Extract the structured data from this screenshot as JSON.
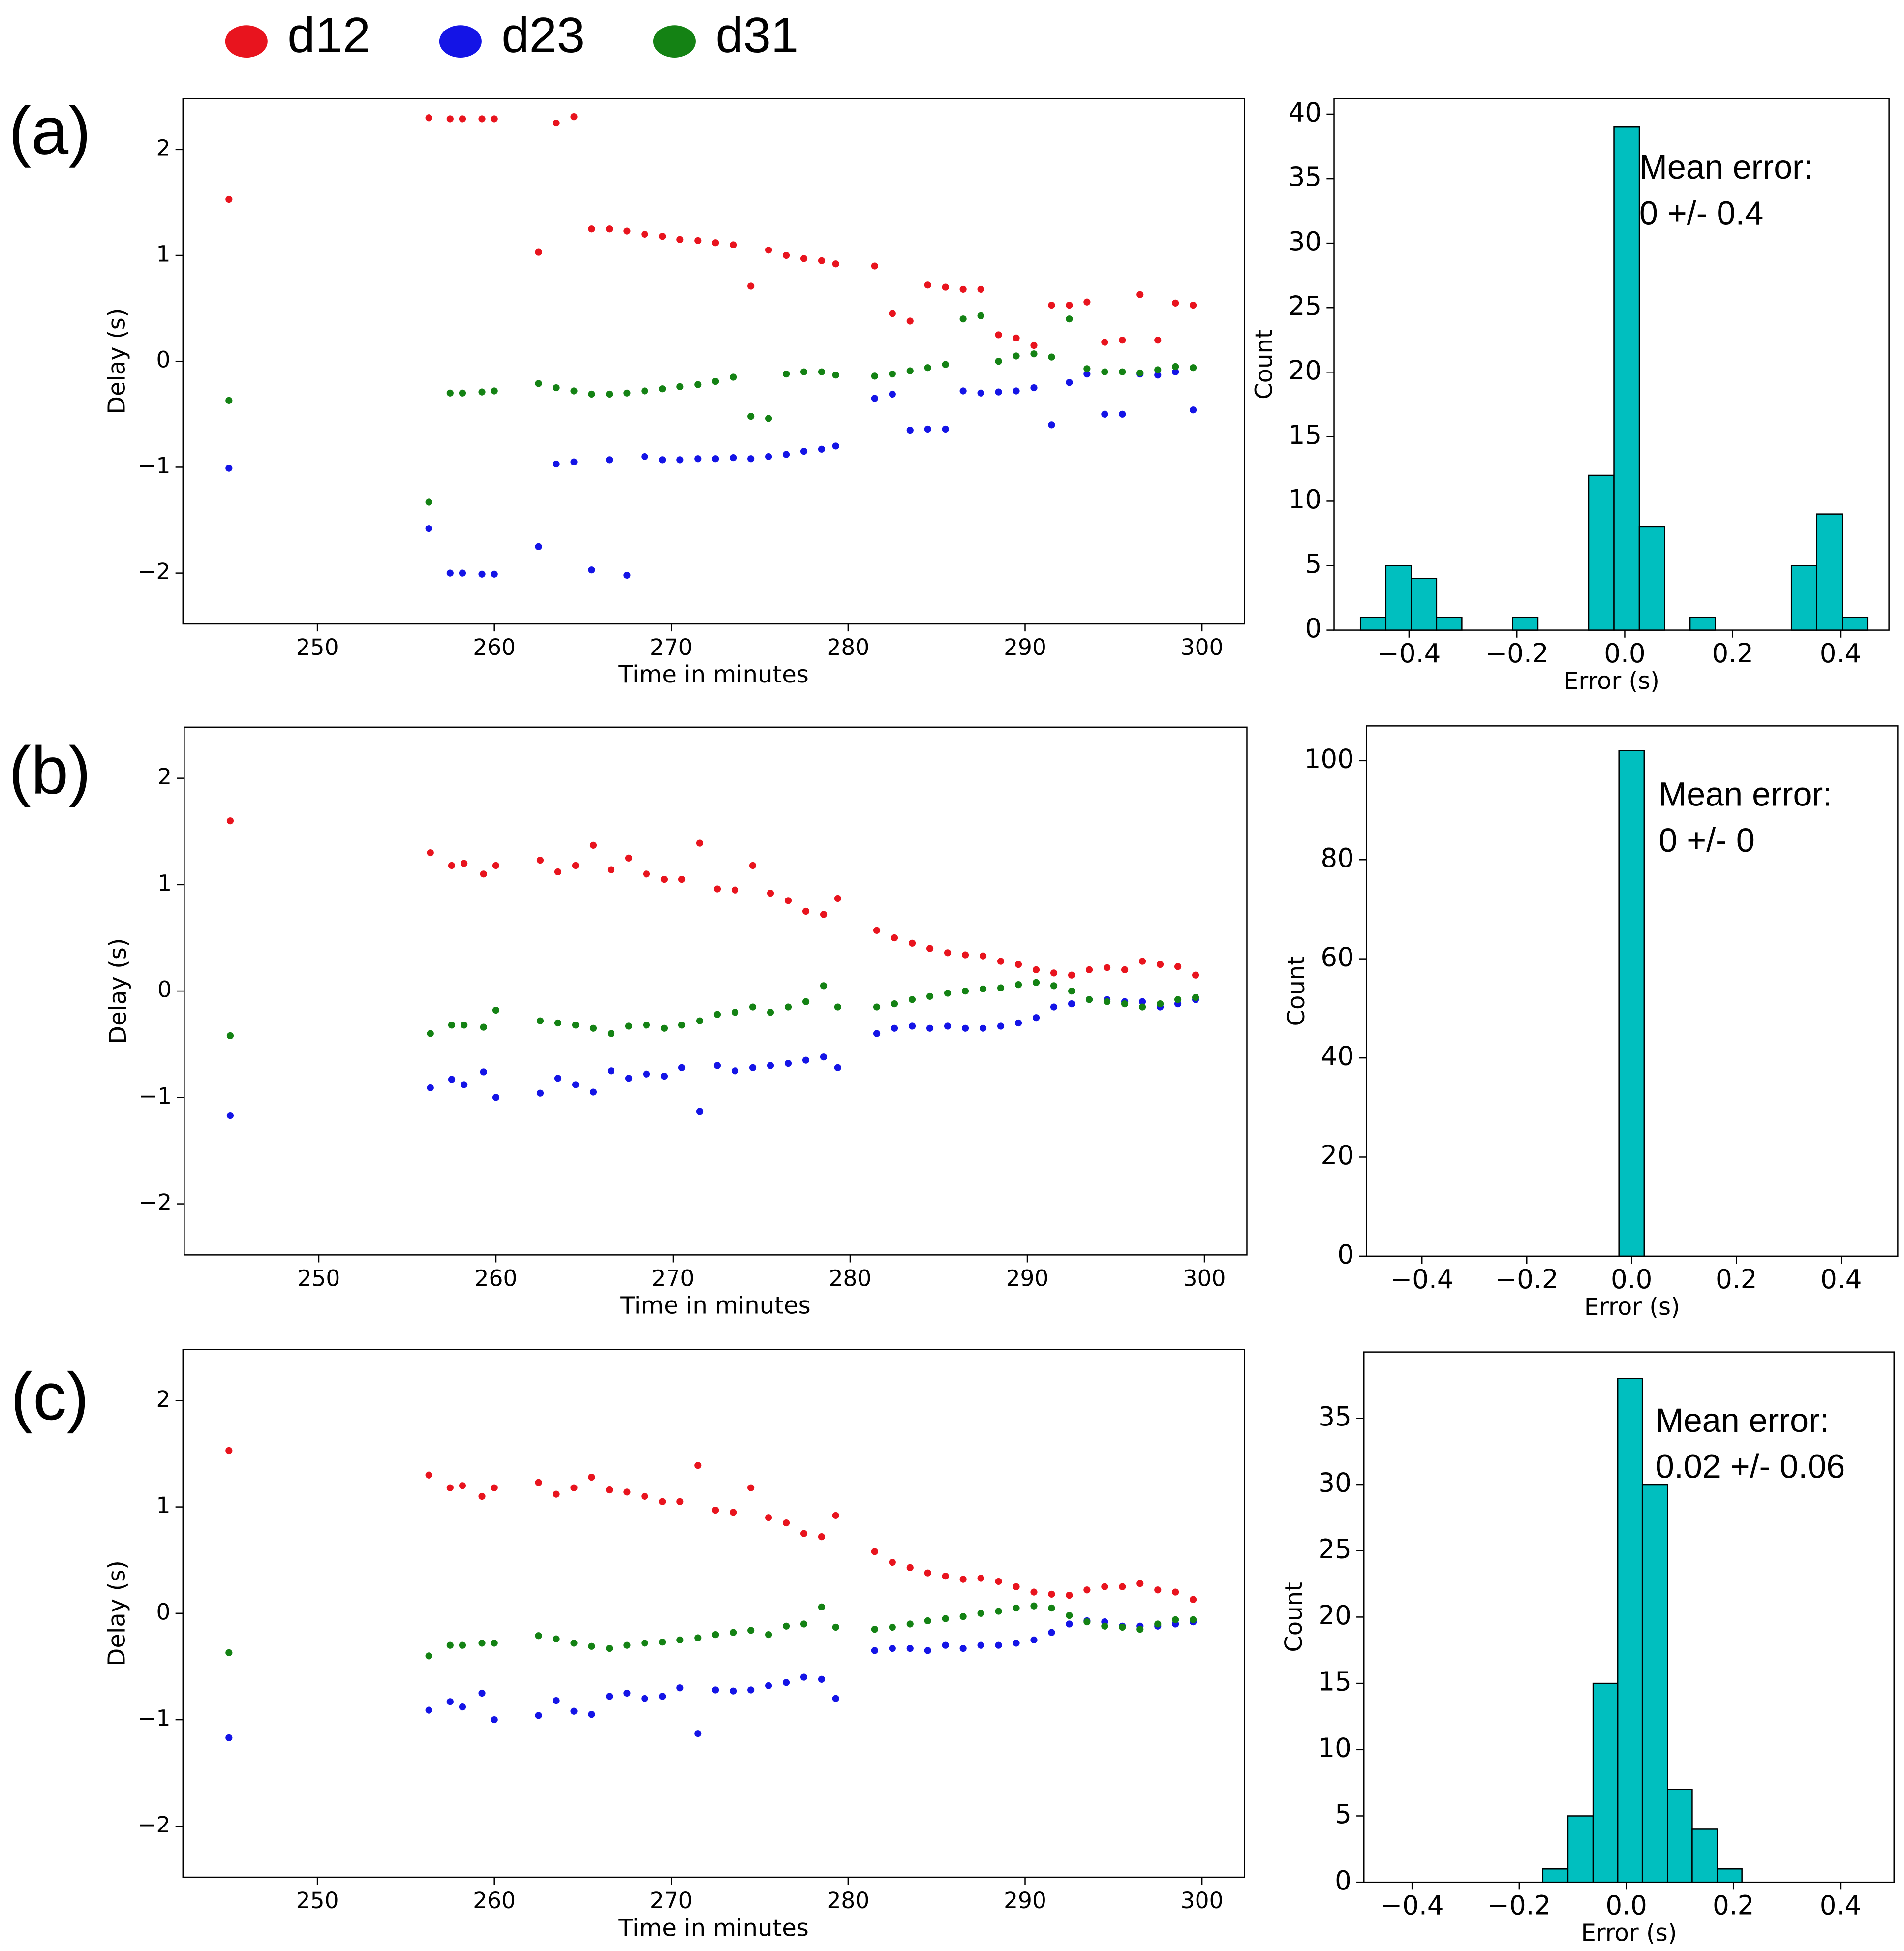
{
  "chart_data": [
    {
      "type": "scatter",
      "panel_label": "(a)",
      "x_label": "Time in minutes",
      "y_label": "Delay (s)",
      "xlim": [
        242.4,
        302.4
      ],
      "ylim": [
        -2.48,
        2.48
      ],
      "xticks": [
        250,
        260,
        270,
        280,
        290,
        300
      ],
      "yticks": [
        {
          "value": -2,
          "label": "−2"
        },
        {
          "value": -1,
          "label": "−1"
        },
        0,
        1,
        2
      ],
      "x": [
        245,
        256.3,
        257.5,
        258.2,
        259.3,
        260,
        262.5,
        263.5,
        264.5,
        265.5,
        266.5,
        267.5,
        268.5,
        269.5,
        270.5,
        271.5,
        272.5,
        273.5,
        274.5,
        275.5,
        276.5,
        277.5,
        278.5,
        279.3,
        281.5,
        282.5,
        283.5,
        284.5,
        285.5,
        286.5,
        287.5,
        288.5,
        289.5,
        290.5,
        291.5,
        292.5,
        293.5,
        294.5,
        295.5,
        296.5,
        297.5,
        298.5,
        299.5
      ],
      "series": [
        {
          "name": "d12",
          "color": "#e8141e",
          "values": [
            1.53,
            2.3,
            2.29,
            2.29,
            2.29,
            2.29,
            1.03,
            2.25,
            2.31,
            1.25,
            1.25,
            1.23,
            1.2,
            1.18,
            1.15,
            1.14,
            1.12,
            1.1,
            0.71,
            1.05,
            1.0,
            0.97,
            0.95,
            0.92,
            0.9,
            0.45,
            0.38,
            0.72,
            0.7,
            0.68,
            0.68,
            0.25,
            0.22,
            0.15,
            0.53,
            0.53,
            0.56,
            0.18,
            0.2,
            0.63,
            0.2,
            0.55,
            0.53
          ]
        },
        {
          "name": "d23",
          "color": "#1414e6",
          "values": [
            -1.01,
            -1.58,
            -2.0,
            -2.0,
            -2.01,
            -2.01,
            -1.75,
            -0.97,
            -0.95,
            -1.97,
            -0.93,
            -2.02,
            -0.9,
            -0.93,
            -0.93,
            -0.92,
            -0.92,
            -0.91,
            -0.92,
            -0.9,
            -0.88,
            -0.85,
            -0.83,
            -0.8,
            -0.35,
            -0.31,
            -0.65,
            -0.64,
            -0.64,
            -0.28,
            -0.3,
            -0.29,
            -0.28,
            -0.25,
            -0.6,
            -0.2,
            -0.12,
            -0.5,
            -0.5,
            -0.12,
            -0.13,
            -0.1,
            -0.46
          ]
        },
        {
          "name": "d31",
          "color": "#148214",
          "values": [
            -0.37,
            -1.33,
            -0.3,
            -0.3,
            -0.29,
            -0.28,
            -0.21,
            -0.25,
            -0.28,
            -0.31,
            -0.31,
            -0.3,
            -0.28,
            -0.26,
            -0.24,
            -0.22,
            -0.19,
            -0.15,
            -0.52,
            -0.54,
            -0.12,
            -0.1,
            -0.1,
            -0.13,
            -0.14,
            -0.12,
            -0.09,
            -0.06,
            -0.03,
            0.4,
            0.43,
            0.0,
            0.05,
            0.07,
            0.04,
            0.4,
            -0.07,
            -0.1,
            -0.1,
            -0.11,
            -0.08,
            -0.05,
            -0.06
          ]
        }
      ]
    },
    {
      "type": "histogram",
      "x_label": "Error (s)",
      "y_label": "Count",
      "color": "#00bfbf",
      "annotation": [
        "Mean error:",
        "0 +/- 0.4"
      ],
      "xlim": [
        -0.539,
        0.49
      ],
      "ylim": [
        0,
        41.2
      ],
      "xticks": [
        {
          "value": -0.4,
          "label": "−0.4"
        },
        {
          "value": -0.2,
          "label": "−0.2"
        },
        {
          "value": 0,
          "label": "0.0"
        },
        0.2,
        0.4
      ],
      "yticks": [
        0,
        5,
        10,
        15,
        20,
        25,
        30,
        35,
        40
      ],
      "bins": [
        -0.49,
        -0.443,
        -0.396,
        -0.349,
        -0.302,
        -0.255,
        -0.208,
        -0.161,
        -0.114,
        -0.067,
        -0.02,
        0.027,
        0.074,
        0.121,
        0.168,
        0.215,
        0.262,
        0.309,
        0.356,
        0.403,
        0.45
      ],
      "values": [
        1,
        5,
        4,
        1,
        0,
        0,
        1,
        0,
        0,
        12,
        39,
        8,
        0,
        1,
        0,
        0,
        0,
        5,
        9,
        1
      ]
    },
    {
      "type": "scatter",
      "panel_label": "(b)",
      "x_label": "Time in minutes",
      "y_label": "Delay (s)",
      "xlim": [
        242.4,
        302.4
      ],
      "ylim": [
        -2.48,
        2.48
      ],
      "xticks": [
        250,
        260,
        270,
        280,
        290,
        300
      ],
      "yticks": [
        {
          "value": -2,
          "label": "−2"
        },
        {
          "value": -1,
          "label": "−1"
        },
        0,
        1,
        2
      ],
      "x": [
        245,
        256.3,
        257.5,
        258.2,
        259.3,
        260,
        262.5,
        263.5,
        264.5,
        265.5,
        266.5,
        267.5,
        268.5,
        269.5,
        270.5,
        271.5,
        272.5,
        273.5,
        274.5,
        275.5,
        276.5,
        277.5,
        278.5,
        279.3,
        281.5,
        282.5,
        283.5,
        284.5,
        285.5,
        286.5,
        287.5,
        288.5,
        289.5,
        290.5,
        291.5,
        292.5,
        293.5,
        294.5,
        295.5,
        296.5,
        297.5,
        298.5,
        299.5
      ],
      "series": [
        {
          "name": "d12",
          "color": "#e8141e",
          "values": [
            1.6,
            1.3,
            1.18,
            1.2,
            1.1,
            1.18,
            1.23,
            1.12,
            1.18,
            1.37,
            1.14,
            1.25,
            1.1,
            1.05,
            1.05,
            1.39,
            0.96,
            0.95,
            1.18,
            0.92,
            0.85,
            0.75,
            0.72,
            0.87,
            0.57,
            0.5,
            0.45,
            0.4,
            0.36,
            0.34,
            0.33,
            0.28,
            0.25,
            0.2,
            0.17,
            0.15,
            0.2,
            0.22,
            0.2,
            0.28,
            0.25,
            0.23,
            0.15
          ]
        },
        {
          "name": "d23",
          "color": "#1414e6",
          "values": [
            -1.17,
            -0.91,
            -0.83,
            -0.88,
            -0.76,
            -1.0,
            -0.96,
            -0.82,
            -0.88,
            -0.95,
            -0.75,
            -0.82,
            -0.78,
            -0.8,
            -0.72,
            -1.13,
            -0.7,
            -0.75,
            -0.72,
            -0.7,
            -0.68,
            -0.65,
            -0.62,
            -0.72,
            -0.4,
            -0.35,
            -0.33,
            -0.35,
            -0.33,
            -0.35,
            -0.35,
            -0.33,
            -0.3,
            -0.25,
            -0.15,
            -0.12,
            -0.08,
            -0.08,
            -0.1,
            -0.1,
            -0.15,
            -0.12,
            -0.08
          ]
        },
        {
          "name": "d31",
          "color": "#148214",
          "values": [
            -0.42,
            -0.4,
            -0.32,
            -0.32,
            -0.34,
            -0.18,
            -0.28,
            -0.3,
            -0.32,
            -0.35,
            -0.4,
            -0.33,
            -0.32,
            -0.35,
            -0.32,
            -0.28,
            -0.22,
            -0.2,
            -0.15,
            -0.2,
            -0.15,
            -0.1,
            0.05,
            -0.15,
            -0.15,
            -0.12,
            -0.08,
            -0.05,
            -0.02,
            0.0,
            0.02,
            0.03,
            0.06,
            0.08,
            0.05,
            0.0,
            -0.08,
            -0.1,
            -0.12,
            -0.15,
            -0.12,
            -0.08,
            -0.06
          ]
        }
      ]
    },
    {
      "type": "histogram",
      "x_label": "Error (s)",
      "y_label": "Count",
      "color": "#00bfbf",
      "annotation": [
        "Mean error:",
        "0 +/- 0"
      ],
      "xlim": [
        -0.506,
        0.508
      ],
      "ylim": [
        0,
        107
      ],
      "xticks": [
        {
          "value": -0.4,
          "label": "−0.4"
        },
        {
          "value": -0.2,
          "label": "−0.2"
        },
        {
          "value": 0,
          "label": "0.0"
        },
        0.2,
        0.4
      ],
      "yticks": [
        0,
        20,
        40,
        60,
        80,
        100
      ],
      "bins": [
        -0.024,
        0.024
      ],
      "values": [
        102
      ]
    },
    {
      "type": "scatter",
      "panel_label": "(c)",
      "x_label": "Time in minutes",
      "y_label": "Delay (s)",
      "xlim": [
        242.4,
        302.4
      ],
      "ylim": [
        -2.48,
        2.48
      ],
      "xticks": [
        250,
        260,
        270,
        280,
        290,
        300
      ],
      "yticks": [
        {
          "value": -2,
          "label": "−2"
        },
        {
          "value": -1,
          "label": "−1"
        },
        0,
        1,
        2
      ],
      "x": [
        245,
        256.3,
        257.5,
        258.2,
        259.3,
        260,
        262.5,
        263.5,
        264.5,
        265.5,
        266.5,
        267.5,
        268.5,
        269.5,
        270.5,
        271.5,
        272.5,
        273.5,
        274.5,
        275.5,
        276.5,
        277.5,
        278.5,
        279.3,
        281.5,
        282.5,
        283.5,
        284.5,
        285.5,
        286.5,
        287.5,
        288.5,
        289.5,
        290.5,
        291.5,
        292.5,
        293.5,
        294.5,
        295.5,
        296.5,
        297.5,
        298.5,
        299.5
      ],
      "series": [
        {
          "name": "d12",
          "color": "#e8141e",
          "values": [
            1.53,
            1.3,
            1.18,
            1.2,
            1.1,
            1.18,
            1.23,
            1.12,
            1.18,
            1.28,
            1.16,
            1.14,
            1.1,
            1.05,
            1.05,
            1.39,
            0.97,
            0.95,
            1.18,
            0.9,
            0.85,
            0.75,
            0.72,
            0.92,
            0.58,
            0.48,
            0.43,
            0.38,
            0.35,
            0.32,
            0.33,
            0.3,
            0.25,
            0.2,
            0.18,
            0.17,
            0.22,
            0.25,
            0.25,
            0.28,
            0.22,
            0.2,
            0.13
          ]
        },
        {
          "name": "d23",
          "color": "#1414e6",
          "values": [
            -1.17,
            -0.91,
            -0.83,
            -0.88,
            -0.75,
            -1.0,
            -0.96,
            -0.82,
            -0.92,
            -0.95,
            -0.78,
            -0.75,
            -0.8,
            -0.78,
            -0.7,
            -1.13,
            -0.72,
            -0.73,
            -0.72,
            -0.68,
            -0.65,
            -0.6,
            -0.62,
            -0.8,
            -0.35,
            -0.33,
            -0.33,
            -0.35,
            -0.3,
            -0.33,
            -0.3,
            -0.3,
            -0.28,
            -0.25,
            -0.18,
            -0.1,
            -0.07,
            -0.08,
            -0.12,
            -0.12,
            -0.12,
            -0.1,
            -0.08
          ]
        },
        {
          "name": "d31",
          "color": "#148214",
          "values": [
            -0.37,
            -0.4,
            -0.3,
            -0.3,
            -0.28,
            -0.28,
            -0.21,
            -0.24,
            -0.28,
            -0.31,
            -0.33,
            -0.3,
            -0.28,
            -0.27,
            -0.25,
            -0.23,
            -0.2,
            -0.18,
            -0.16,
            -0.2,
            -0.12,
            -0.1,
            0.06,
            -0.13,
            -0.15,
            -0.13,
            -0.1,
            -0.07,
            -0.05,
            -0.03,
            0.0,
            0.02,
            0.05,
            0.07,
            0.05,
            -0.02,
            -0.08,
            -0.12,
            -0.13,
            -0.15,
            -0.1,
            -0.06,
            -0.06
          ]
        }
      ]
    },
    {
      "type": "histogram",
      "x_label": "Error (s)",
      "y_label": "Count",
      "color": "#00bfbf",
      "annotation": [
        "Mean error:",
        "0.02 +/- 0.06"
      ],
      "xlim": [
        -0.49,
        0.5
      ],
      "ylim": [
        0,
        40
      ],
      "xticks": [
        {
          "value": -0.4,
          "label": "−0.4"
        },
        {
          "value": -0.2,
          "label": "−0.2"
        },
        {
          "value": 0,
          "label": "0.0"
        },
        0.2,
        0.4
      ],
      "yticks": [
        0,
        5,
        10,
        15,
        20,
        25,
        30,
        35
      ],
      "bins": [
        -0.156,
        -0.109,
        -0.062,
        -0.016,
        0.03,
        0.077,
        0.123,
        0.17,
        0.216
      ],
      "values": [
        1,
        5,
        15,
        38,
        30,
        7,
        4,
        1
      ]
    }
  ]
}
